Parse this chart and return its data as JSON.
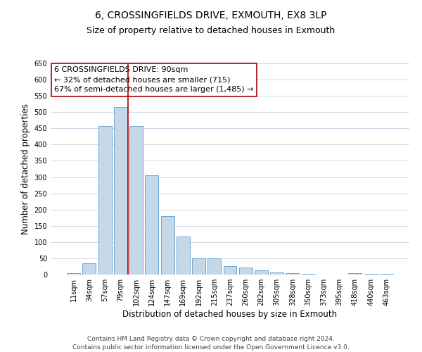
{
  "title": "6, CROSSINGFIELDS DRIVE, EXMOUTH, EX8 3LP",
  "subtitle": "Size of property relative to detached houses in Exmouth",
  "xlabel": "Distribution of detached houses by size in Exmouth",
  "ylabel": "Number of detached properties",
  "bar_labels": [
    "11sqm",
    "34sqm",
    "57sqm",
    "79sqm",
    "102sqm",
    "124sqm",
    "147sqm",
    "169sqm",
    "192sqm",
    "215sqm",
    "237sqm",
    "260sqm",
    "282sqm",
    "305sqm",
    "328sqm",
    "350sqm",
    "373sqm",
    "395sqm",
    "418sqm",
    "440sqm",
    "463sqm"
  ],
  "bar_values": [
    5,
    35,
    458,
    515,
    458,
    305,
    180,
    118,
    50,
    50,
    27,
    22,
    13,
    7,
    4,
    2,
    1,
    0,
    5,
    3,
    2
  ],
  "bar_color": "#c5d8e8",
  "bar_edge_color": "#5b9bd5",
  "vline_x_index": 3,
  "vline_color": "#aa0000",
  "annotation_text": "6 CROSSINGFIELDS DRIVE: 90sqm\n← 32% of detached houses are smaller (715)\n67% of semi-detached houses are larger (1,485) →",
  "annotation_box_color": "#ffffff",
  "annotation_box_edge": "#aa0000",
  "ylim": [
    0,
    650
  ],
  "yticks": [
    0,
    50,
    100,
    150,
    200,
    250,
    300,
    350,
    400,
    450,
    500,
    550,
    600,
    650
  ],
  "footer1": "Contains HM Land Registry data © Crown copyright and database right 2024.",
  "footer2": "Contains public sector information licensed under the Open Government Licence v3.0.",
  "bg_color": "#ffffff",
  "grid_color": "#d0d8e8",
  "title_fontsize": 10,
  "subtitle_fontsize": 9,
  "axis_label_fontsize": 8.5,
  "tick_fontsize": 7,
  "annotation_fontsize": 8,
  "footer_fontsize": 6.5
}
